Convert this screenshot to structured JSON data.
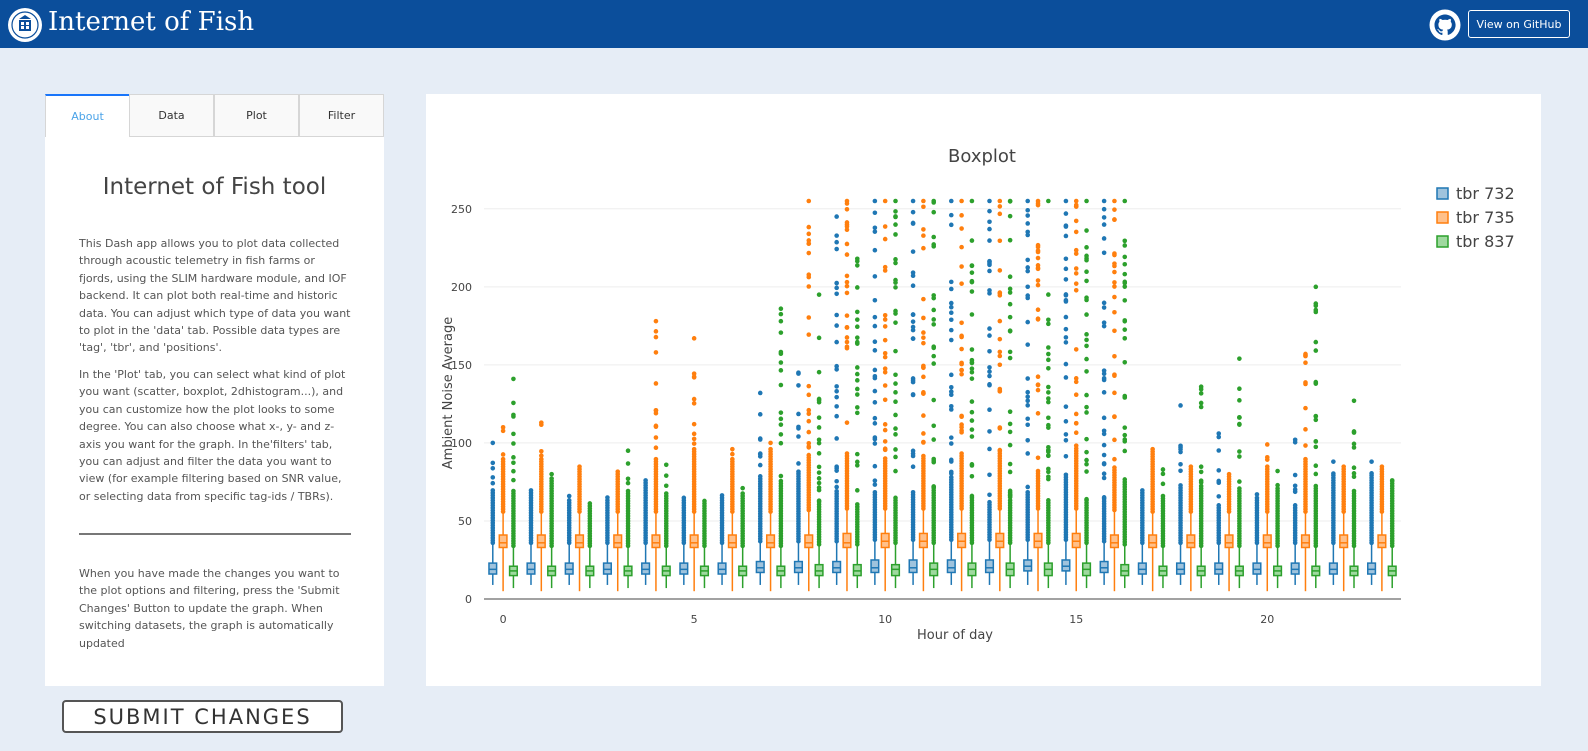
{
  "header": {
    "title": "Internet of Fish",
    "github_button": "View on GitHub"
  },
  "tabs": [
    {
      "label": "About",
      "active": true
    },
    {
      "label": "Data",
      "active": false
    },
    {
      "label": "Plot",
      "active": false
    },
    {
      "label": "Filter",
      "active": false
    }
  ],
  "about": {
    "title": "Internet of Fish tool",
    "paragraph_1": "This Dash app allows you to plot data collected through acoustic telemetry in fish farms or fjords, using the SLIM hardware module, and IOF backend. It can plot both real-time and historic data. You can adjust which type of data you want to plot in the 'data' tab. Possible data types are 'tag', 'tbr', and 'positions'.",
    "paragraph_2": "In the 'Plot' tab, you can select what kind of plot you want (scatter, boxplot, 2dhistogram...), and you can customize how the plot looks to some degree. You can also choose what x-, y- and z-axis you want for the graph. In the'filters' tab, you can adjust and filter the data you want to view (for example filtering based on SNR value, or selecting data from specific tag-ids / TBRs).",
    "paragraph_3": "When you have made the changes you want to the plot options and filtering, press the 'Submit Changes' Button to update the graph. When switching datasets, the graph is automatically updated"
  },
  "submit_label": "SUBMIT CHANGES",
  "colors": {
    "header": "#0b4e9b",
    "background": "#e6edf6",
    "tab_accent": "#1975fa"
  },
  "icons": {
    "brand": "university-seal-icon",
    "github": "github-octocat-icon"
  },
  "chart_data": {
    "type": "box",
    "title": "Boxplot",
    "xlabel": "Hour of day",
    "ylabel": "Ambient Noise Average",
    "x_ticks": [
      0,
      5,
      10,
      15,
      20
    ],
    "y_ticks": [
      0,
      50,
      100,
      150,
      200,
      250
    ],
    "xlim": [
      -0.5,
      23.5
    ],
    "ylim": [
      0,
      255
    ],
    "grid": true,
    "legend_position": "top-right",
    "categories": [
      0,
      1,
      2,
      3,
      4,
      5,
      6,
      7,
      8,
      9,
      10,
      11,
      12,
      13,
      14,
      15,
      16,
      17,
      18,
      19,
      20,
      21,
      22,
      23
    ],
    "series": [
      {
        "name": "tbr 732",
        "color": "#1f77b4",
        "fill": "#9fc3dd",
        "q1": [
          16,
          16,
          16,
          16,
          16,
          16,
          16,
          17,
          17,
          17,
          17,
          17,
          17,
          17,
          18,
          18,
          17,
          16,
          16,
          16,
          16,
          16,
          16,
          16
        ],
        "median": [
          19,
          19,
          19,
          19,
          19,
          19,
          19,
          20,
          20,
          20,
          20,
          20,
          20,
          20,
          21,
          21,
          20,
          19,
          19,
          19,
          19,
          19,
          19,
          19
        ],
        "q3": [
          23,
          23,
          23,
          23,
          23,
          23,
          23,
          24,
          24,
          24,
          25,
          25,
          25,
          25,
          25,
          25,
          24,
          23,
          23,
          23,
          23,
          23,
          23,
          23
        ],
        "min": [
          9,
          9,
          9,
          9,
          9,
          9,
          9,
          9,
          9,
          9,
          9,
          9,
          9,
          9,
          9,
          9,
          9,
          9,
          9,
          9,
          9,
          9,
          9,
          9
        ],
        "max": [
          35,
          35,
          35,
          35,
          35,
          35,
          35,
          36,
          36,
          36,
          37,
          37,
          37,
          37,
          37,
          37,
          36,
          35,
          35,
          35,
          35,
          35,
          35,
          35
        ],
        "outlier_max": [
          100,
          70,
          66,
          65,
          77,
          66,
          67,
          132,
          145,
          245,
          255,
          255,
          255,
          255,
          255,
          255,
          255,
          70,
          124,
          106,
          67,
          102,
          88,
          88
        ]
      },
      {
        "name": "tbr 735",
        "color": "#ff7f0e",
        "fill": "#ffc08a",
        "q1": [
          33,
          33,
          33,
          33,
          33,
          33,
          33,
          33,
          33,
          33,
          33,
          33,
          33,
          33,
          33,
          33,
          33,
          33,
          33,
          33,
          33,
          33,
          33,
          33
        ],
        "median": [
          36,
          36,
          36,
          36,
          36,
          36,
          36,
          36,
          36,
          36,
          37,
          37,
          37,
          37,
          37,
          37,
          36,
          36,
          36,
          36,
          36,
          36,
          36,
          36
        ],
        "q3": [
          41,
          41,
          41,
          41,
          41,
          41,
          41,
          41,
          41,
          42,
          42,
          42,
          42,
          42,
          42,
          42,
          41,
          41,
          41,
          41,
          41,
          41,
          41,
          41
        ],
        "min": [
          5,
          5,
          5,
          5,
          5,
          5,
          5,
          5,
          5,
          5,
          5,
          5,
          5,
          5,
          5,
          5,
          5,
          5,
          5,
          5,
          5,
          5,
          5,
          5
        ],
        "max": [
          55,
          55,
          55,
          55,
          55,
          55,
          55,
          55,
          56,
          57,
          57,
          57,
          57,
          57,
          57,
          57,
          56,
          55,
          55,
          55,
          55,
          55,
          55,
          55
        ],
        "outlier_max": [
          110,
          113,
          86,
          82,
          178,
          167,
          96,
          100,
          255,
          255,
          255,
          255,
          255,
          255,
          255,
          255,
          255,
          97,
          86,
          81,
          99,
          157,
          86,
          86
        ]
      },
      {
        "name": "tbr 837",
        "color": "#2ca02c",
        "fill": "#9fd99f",
        "q1": [
          15,
          15,
          15,
          15,
          15,
          15,
          15,
          15,
          15,
          15,
          15,
          15,
          15,
          15,
          15,
          15,
          15,
          15,
          15,
          15,
          15,
          15,
          15,
          15
        ],
        "median": [
          18,
          18,
          18,
          18,
          18,
          18,
          18,
          18,
          18,
          18,
          19,
          19,
          19,
          19,
          19,
          19,
          18,
          18,
          18,
          18,
          18,
          18,
          18,
          18
        ],
        "q3": [
          21,
          21,
          21,
          21,
          21,
          21,
          21,
          21,
          22,
          22,
          22,
          23,
          23,
          23,
          23,
          23,
          22,
          21,
          21,
          21,
          21,
          21,
          21,
          21
        ],
        "min": [
          7,
          7,
          7,
          7,
          7,
          7,
          7,
          7,
          7,
          7,
          7,
          7,
          7,
          7,
          7,
          7,
          7,
          7,
          7,
          7,
          7,
          7,
          7,
          7
        ],
        "max": [
          33,
          33,
          33,
          33,
          33,
          33,
          33,
          33,
          34,
          34,
          35,
          35,
          35,
          35,
          35,
          35,
          34,
          33,
          33,
          33,
          33,
          33,
          33,
          33
        ],
        "outlier_max": [
          141,
          80,
          62,
          95,
          86,
          64,
          71,
          186,
          195,
          218,
          255,
          255,
          255,
          255,
          255,
          255,
          255,
          83,
          136,
          154,
          82,
          200,
          127,
          76
        ]
      }
    ]
  }
}
